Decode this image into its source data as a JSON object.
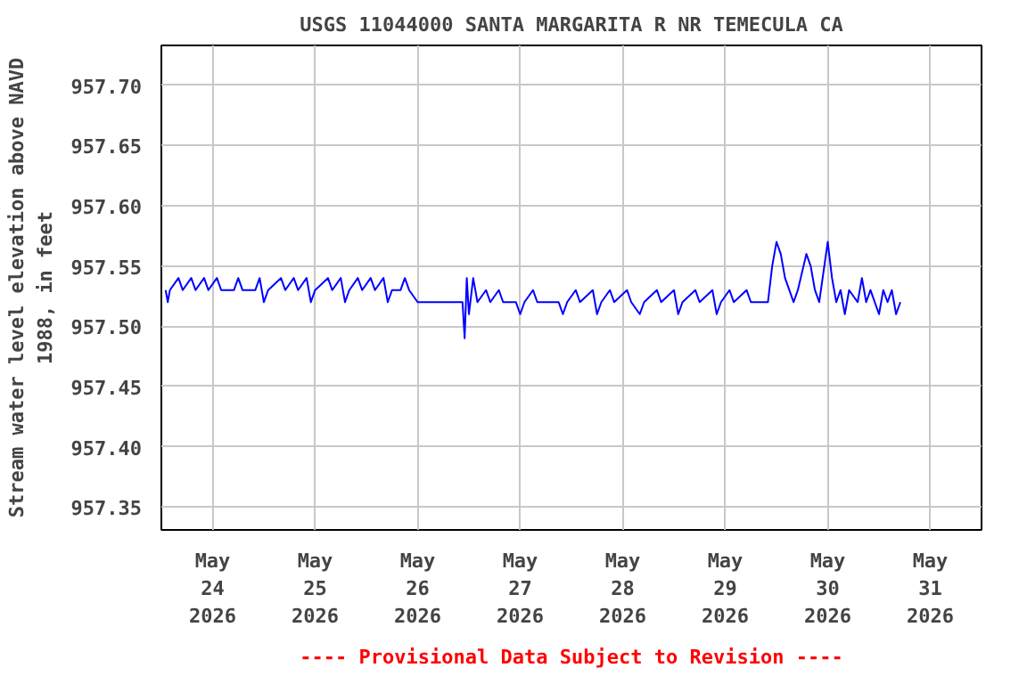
{
  "chart_data": {
    "type": "line",
    "title": "USGS 11044000 SANTA MARGARITA R NR TEMECULA CA",
    "ylabel": "Stream water level elevation above NAVD\n1988, in feet",
    "annotations": [
      "---- Provisional Data Subject to Revision ----"
    ],
    "xlim": [
      "2026-05-23T12:00",
      "2026-05-31T12:00"
    ],
    "xticks": [
      {
        "value": "2026-05-24",
        "label": "May\n24\n2026"
      },
      {
        "value": "2026-05-25",
        "label": "May\n25\n2026"
      },
      {
        "value": "2026-05-26",
        "label": "May\n26\n2026"
      },
      {
        "value": "2026-05-27",
        "label": "May\n27\n2026"
      },
      {
        "value": "2026-05-28",
        "label": "May\n28\n2026"
      },
      {
        "value": "2026-05-29",
        "label": "May\n29\n2026"
      },
      {
        "value": "2026-05-30",
        "label": "May\n30\n2026"
      },
      {
        "value": "2026-05-31",
        "label": "May\n31\n2026"
      }
    ],
    "ylim": [
      957.331,
      957.733
    ],
    "yticks": [
      {
        "value": 957.35,
        "label": "957.35"
      },
      {
        "value": 957.4,
        "label": "957.40"
      },
      {
        "value": 957.45,
        "label": "957.45"
      },
      {
        "value": 957.5,
        "label": "957.50"
      },
      {
        "value": 957.55,
        "label": "957.55"
      },
      {
        "value": 957.6,
        "label": "957.60"
      },
      {
        "value": 957.65,
        "label": "957.65"
      },
      {
        "value": 957.7,
        "label": "957.70"
      }
    ],
    "grid": true,
    "marker": "none",
    "line_style": "solid",
    "series": [
      {
        "color": "#0000ff",
        "x": [
          "2026-05-23T13:00",
          "2026-05-23T13:30",
          "2026-05-23T14:00",
          "2026-05-23T16:00",
          "2026-05-23T17:00",
          "2026-05-23T19:00",
          "2026-05-23T20:00",
          "2026-05-23T22:00",
          "2026-05-23T23:00",
          "2026-05-24T01:00",
          "2026-05-24T02:00",
          "2026-05-24T05:00",
          "2026-05-24T06:00",
          "2026-05-24T07:00",
          "2026-05-24T10:00",
          "2026-05-24T11:00",
          "2026-05-24T12:00",
          "2026-05-24T13:00",
          "2026-05-24T16:00",
          "2026-05-24T17:00",
          "2026-05-24T19:00",
          "2026-05-24T20:00",
          "2026-05-24T22:00",
          "2026-05-24T23:00",
          "2026-05-25T00:00",
          "2026-05-25T03:00",
          "2026-05-25T04:00",
          "2026-05-25T06:00",
          "2026-05-25T07:00",
          "2026-05-25T08:00",
          "2026-05-25T10:00",
          "2026-05-25T11:00",
          "2026-05-25T13:00",
          "2026-05-25T14:00",
          "2026-05-25T16:00",
          "2026-05-25T17:00",
          "2026-05-25T18:00",
          "2026-05-25T20:00",
          "2026-05-25T21:00",
          "2026-05-25T22:00",
          "2026-05-26T00:00",
          "2026-05-26T10:30",
          "2026-05-26T11:00",
          "2026-05-26T11:30",
          "2026-05-26T12:00",
          "2026-05-26T13:00",
          "2026-05-26T14:00",
          "2026-05-26T16:00",
          "2026-05-26T17:00",
          "2026-05-26T19:00",
          "2026-05-26T20:00",
          "2026-05-26T23:00",
          "2026-05-27T00:00",
          "2026-05-27T01:00",
          "2026-05-27T03:00",
          "2026-05-27T04:00",
          "2026-05-27T09:00",
          "2026-05-27T10:00",
          "2026-05-27T11:00",
          "2026-05-27T13:00",
          "2026-05-27T14:00",
          "2026-05-27T17:00",
          "2026-05-27T18:00",
          "2026-05-27T19:00",
          "2026-05-27T21:00",
          "2026-05-27T22:00",
          "2026-05-28T01:00",
          "2026-05-28T02:00",
          "2026-05-28T04:00",
          "2026-05-28T05:00",
          "2026-05-28T08:00",
          "2026-05-28T09:00",
          "2026-05-28T12:00",
          "2026-05-28T13:00",
          "2026-05-28T14:00",
          "2026-05-28T17:00",
          "2026-05-28T18:00",
          "2026-05-28T21:00",
          "2026-05-28T22:00",
          "2026-05-28T23:00",
          "2026-05-29T01:00",
          "2026-05-29T02:00",
          "2026-05-29T05:00",
          "2026-05-29T06:00",
          "2026-05-29T10:00",
          "2026-05-29T11:00",
          "2026-05-29T12:00",
          "2026-05-29T13:00",
          "2026-05-29T14:00",
          "2026-05-29T15:00",
          "2026-05-29T16:00",
          "2026-05-29T17:00",
          "2026-05-29T19:00",
          "2026-05-29T20:00",
          "2026-05-29T21:00",
          "2026-05-29T22:00",
          "2026-05-30T00:00",
          "2026-05-30T01:00",
          "2026-05-30T02:00",
          "2026-05-30T03:00",
          "2026-05-30T04:00",
          "2026-05-30T05:00",
          "2026-05-30T07:00",
          "2026-05-30T08:00",
          "2026-05-30T09:00",
          "2026-05-30T10:00",
          "2026-05-30T12:00",
          "2026-05-30T13:00",
          "2026-05-30T14:00",
          "2026-05-30T15:00",
          "2026-05-30T16:00",
          "2026-05-30T17:00"
        ],
        "values": [
          957.53,
          957.52,
          957.53,
          957.54,
          957.53,
          957.54,
          957.53,
          957.54,
          957.53,
          957.54,
          957.53,
          957.53,
          957.54,
          957.53,
          957.53,
          957.54,
          957.52,
          957.53,
          957.54,
          957.53,
          957.54,
          957.53,
          957.54,
          957.52,
          957.53,
          957.54,
          957.53,
          957.54,
          957.52,
          957.53,
          957.54,
          957.53,
          957.54,
          957.53,
          957.54,
          957.52,
          957.53,
          957.53,
          957.54,
          957.53,
          957.52,
          957.52,
          957.49,
          957.54,
          957.51,
          957.54,
          957.52,
          957.53,
          957.52,
          957.53,
          957.52,
          957.52,
          957.51,
          957.52,
          957.53,
          957.52,
          957.52,
          957.51,
          957.52,
          957.53,
          957.52,
          957.53,
          957.51,
          957.52,
          957.53,
          957.52,
          957.53,
          957.52,
          957.51,
          957.52,
          957.53,
          957.52,
          957.53,
          957.51,
          957.52,
          957.53,
          957.52,
          957.53,
          957.51,
          957.52,
          957.53,
          957.52,
          957.53,
          957.52,
          957.52,
          957.55,
          957.57,
          957.56,
          957.54,
          957.53,
          957.52,
          957.53,
          957.56,
          957.55,
          957.53,
          957.52,
          957.57,
          957.54,
          957.52,
          957.53,
          957.51,
          957.53,
          957.52,
          957.54,
          957.52,
          957.53,
          957.51,
          957.53,
          957.52,
          957.53,
          957.51,
          957.52
        ]
      }
    ]
  }
}
